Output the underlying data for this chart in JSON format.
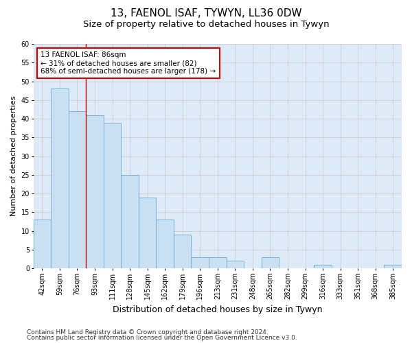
{
  "title1": "13, FAENOL ISAF, TYWYN, LL36 0DW",
  "title2": "Size of property relative to detached houses in Tywyn",
  "xlabel": "Distribution of detached houses by size in Tywyn",
  "ylabel": "Number of detached properties",
  "categories": [
    "42sqm",
    "59sqm",
    "76sqm",
    "93sqm",
    "111sqm",
    "128sqm",
    "145sqm",
    "162sqm",
    "179sqm",
    "196sqm",
    "213sqm",
    "231sqm",
    "248sqm",
    "265sqm",
    "282sqm",
    "299sqm",
    "316sqm",
    "333sqm",
    "351sqm",
    "368sqm",
    "385sqm"
  ],
  "values": [
    13,
    48,
    42,
    41,
    39,
    25,
    19,
    13,
    9,
    3,
    3,
    2,
    0,
    3,
    0,
    0,
    1,
    0,
    0,
    0,
    1
  ],
  "bar_color": "#c9dff2",
  "bar_edge_color": "#6fa8d4",
  "vline_x_index": 2.5,
  "vline_color": "#cc0000",
  "annotation_text": "13 FAENOL ISAF: 86sqm\n← 31% of detached houses are smaller (82)\n68% of semi-detached houses are larger (178) →",
  "annotation_box_color": "#ffffff",
  "annotation_box_edge": "#cc0000",
  "ylim": [
    0,
    60
  ],
  "yticks": [
    0,
    5,
    10,
    15,
    20,
    25,
    30,
    35,
    40,
    45,
    50,
    55,
    60
  ],
  "grid_color": "#cccccc",
  "bg_color": "#ddeaf7",
  "footer1": "Contains HM Land Registry data © Crown copyright and database right 2024.",
  "footer2": "Contains public sector information licensed under the Open Government Licence v3.0.",
  "title1_fontsize": 11,
  "title2_fontsize": 9.5,
  "xlabel_fontsize": 9,
  "ylabel_fontsize": 8,
  "tick_fontsize": 7,
  "footer_fontsize": 6.5,
  "ann_fontsize": 7.5
}
